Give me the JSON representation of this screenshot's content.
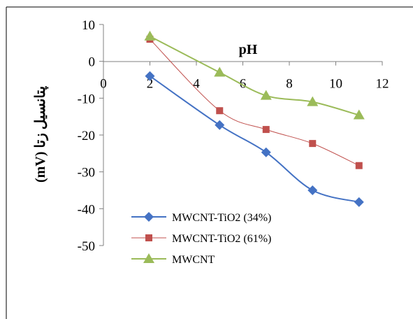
{
  "chart_data": {
    "type": "line",
    "xlabel": "pH",
    "ylabel": "(mV) پتانسیل زتا",
    "xlim": [
      0,
      12
    ],
    "ylim": [
      -50,
      10
    ],
    "x_ticks": [
      0,
      2,
      4,
      6,
      8,
      10,
      12
    ],
    "y_ticks": [
      10,
      0,
      -10,
      -20,
      -30,
      -40,
      -50
    ],
    "grid": false,
    "legend_position": "bottom-left",
    "series": [
      {
        "name": "MWCNT-TiO2 (34%)",
        "color": "#4472C4",
        "marker": "diamond",
        "x": [
          2,
          5,
          7,
          9,
          11
        ],
        "y": [
          -4,
          -17.3,
          -24.7,
          -35,
          -38.2
        ]
      },
      {
        "name": "MWCNT-TiO2 (61%)",
        "color": "#C0504D",
        "marker": "square",
        "x": [
          2,
          5,
          7,
          9,
          11
        ],
        "y": [
          6,
          -13.4,
          -18.5,
          -22.3,
          -28.3
        ]
      },
      {
        "name": "MWCNT",
        "color": "#9BBB59",
        "marker": "triangle",
        "x": [
          2,
          5,
          7,
          9,
          11
        ],
        "y": [
          6.8,
          -3,
          -9.3,
          -11,
          -14.6
        ]
      }
    ]
  }
}
